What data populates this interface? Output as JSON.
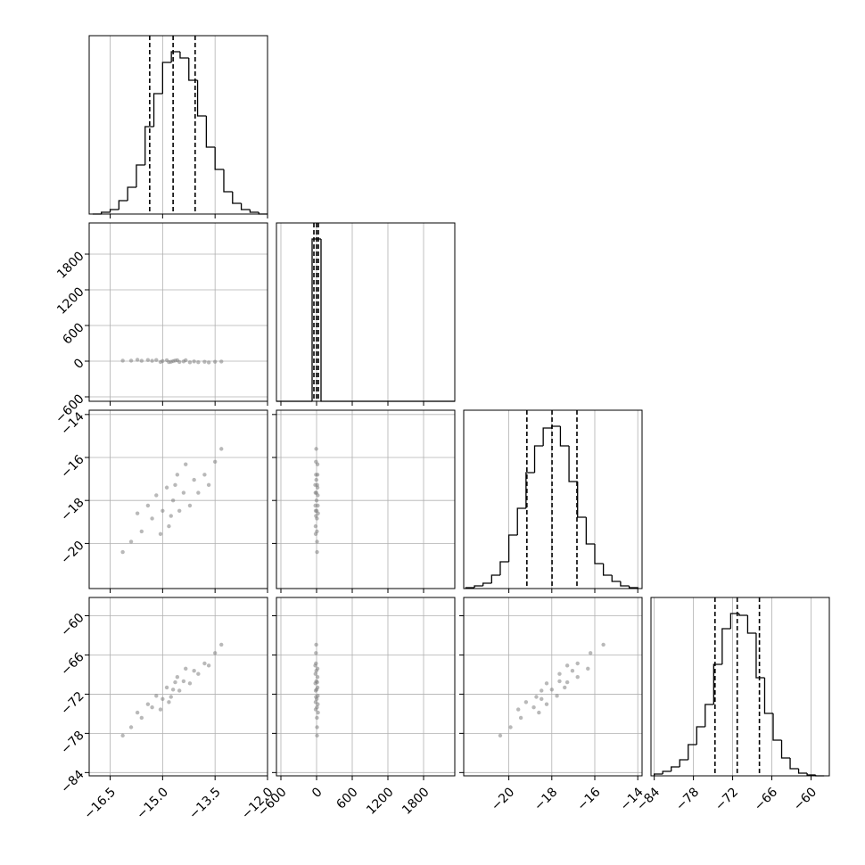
{
  "chart_data": {
    "type": "corner",
    "grid": true,
    "hist_ylim": [
      0,
      200
    ],
    "hist_color": "#000000",
    "point_color": "#808080",
    "parameters": [
      {
        "lim": [
          -17.1,
          -12.0
        ],
        "ticks": [
          {
            "value": -16.5,
            "label": "−16.5"
          },
          {
            "value": -15.0,
            "label": "−15.0"
          },
          {
            "value": -13.5,
            "label": "−13.5"
          },
          {
            "value": -12.0,
            "label": "−12.0"
          }
        ],
        "bins": [
          -17,
          -16.75,
          -16.5,
          -16.25,
          -16,
          -15.75,
          -15.5,
          -15.25,
          -15,
          -14.75,
          -14.5,
          -14.25,
          -14,
          -13.75,
          -13.5,
          -13.25,
          -13,
          -12.75,
          -12.5,
          -12.25,
          -12
        ],
        "counts": [
          0,
          2,
          5,
          15,
          30,
          55,
          98,
          135,
          170,
          182,
          175,
          150,
          110,
          75,
          50,
          25,
          12,
          5,
          2,
          0
        ],
        "quantiles": [
          -15.37,
          -14.7,
          -14.07
        ],
        "samples": [
          -14.7,
          -14.4,
          -15.0,
          -14.1,
          -15.3,
          -14.52,
          -14.88,
          -13.8,
          -15.6,
          -14.22,
          -15.18,
          -13.5,
          -15.9,
          -14.58,
          -14.82,
          -13.98,
          -15.42,
          -14.34,
          -15.06,
          -13.32,
          -16.14,
          -14.64,
          -14.76,
          -13.68,
          -15.72
        ]
      },
      {
        "lim": [
          -675,
          2325
        ],
        "ticks": [
          {
            "value": -600,
            "label": "−600"
          },
          0,
          600,
          1200,
          1800
        ],
        "bins": [
          -675,
          -525,
          -375,
          -225,
          -75,
          75,
          225,
          375,
          525,
          675,
          825,
          975,
          1125,
          1275,
          1425,
          1575,
          1725,
          1875,
          2025,
          2175,
          2325
        ],
        "counts": [
          0,
          0,
          0,
          0,
          182,
          0,
          0,
          0,
          0,
          0,
          0,
          0,
          0,
          0,
          0,
          0,
          0,
          0,
          0,
          0
        ],
        "quantiles": [
          -45,
          0,
          30
        ],
        "samples": [
          0,
          -4,
          2,
          -4,
          6,
          -14,
          16,
          -10,
          6,
          -20,
          20,
          -10,
          8,
          16,
          -16,
          -18,
          20,
          16,
          -14,
          -6,
          8,
          10,
          -10,
          -22,
          24
        ]
      },
      {
        "lim": [
          -22.1,
          -13.8
        ],
        "ticks": [
          {
            "value": -20,
            "label": "−20"
          },
          {
            "value": -18,
            "label": "−18"
          },
          {
            "value": -16,
            "label": "−16"
          },
          {
            "value": -14,
            "label": "−14"
          }
        ],
        "bins": [
          -22,
          -21.6,
          -21.2,
          -20.8,
          -20.4,
          -20,
          -19.6,
          -19.2,
          -18.8,
          -18.4,
          -18,
          -17.6,
          -17.2,
          -16.8,
          -16.4,
          -16,
          -15.6,
          -15.2,
          -14.8,
          -14.4,
          -14
        ],
        "counts": [
          1,
          3,
          6,
          15,
          30,
          60,
          90,
          130,
          160,
          180,
          182,
          160,
          120,
          80,
          50,
          28,
          15,
          8,
          3,
          1
        ],
        "quantiles": [
          -19.16,
          -17.99,
          -16.83
        ],
        "samples": [
          -18,
          -17.64,
          -18.48,
          -17.04,
          -18.84,
          -18.48,
          -17.4,
          -16.8,
          -19.44,
          -18.24,
          -17.76,
          -16.2,
          -19.92,
          -16.8,
          -19.2,
          -17.64,
          -18.24,
          -16.32,
          -19.56,
          -15.6,
          -20.4,
          -17.28,
          -18.72,
          -17.28,
          -18.6
        ]
      },
      {
        "lim": [
          -84.5,
          -57.2
        ],
        "ticks": [
          {
            "value": -84,
            "label": "−84"
          },
          {
            "value": -78,
            "label": "−78"
          },
          {
            "value": -72,
            "label": "−72"
          },
          {
            "value": -66,
            "label": "−66"
          },
          {
            "value": -60,
            "label": "−60"
          }
        ],
        "bins": [
          -84,
          -82.7,
          -81.4,
          -80.1,
          -78.8,
          -77.5,
          -76.2,
          -74.9,
          -73.6,
          -72.3,
          -71,
          -69.7,
          -68.4,
          -67.1,
          -65.8,
          -64.5,
          -63.2,
          -61.9,
          -60.6,
          -59.3,
          -58
        ],
        "counts": [
          2,
          5,
          10,
          18,
          35,
          55,
          80,
          125,
          165,
          182,
          180,
          160,
          110,
          70,
          40,
          20,
          8,
          3,
          1,
          0
        ],
        "quantiles": [
          -74.7,
          -71.3,
          -67.9
        ],
        "samples": [
          -71.3,
          -70.02,
          -72.74,
          -68.42,
          -74.02,
          -71.46,
          -70.98,
          -67.3,
          -75.62,
          -70.34,
          -72.26,
          -65.7,
          -77.06,
          -69.38,
          -73.22,
          -68.9,
          -73.54,
          -68.1,
          -74.34,
          -64.42,
          -78.34,
          -70.18,
          -72.42,
          -67.62,
          -74.82
        ]
      }
    ]
  }
}
